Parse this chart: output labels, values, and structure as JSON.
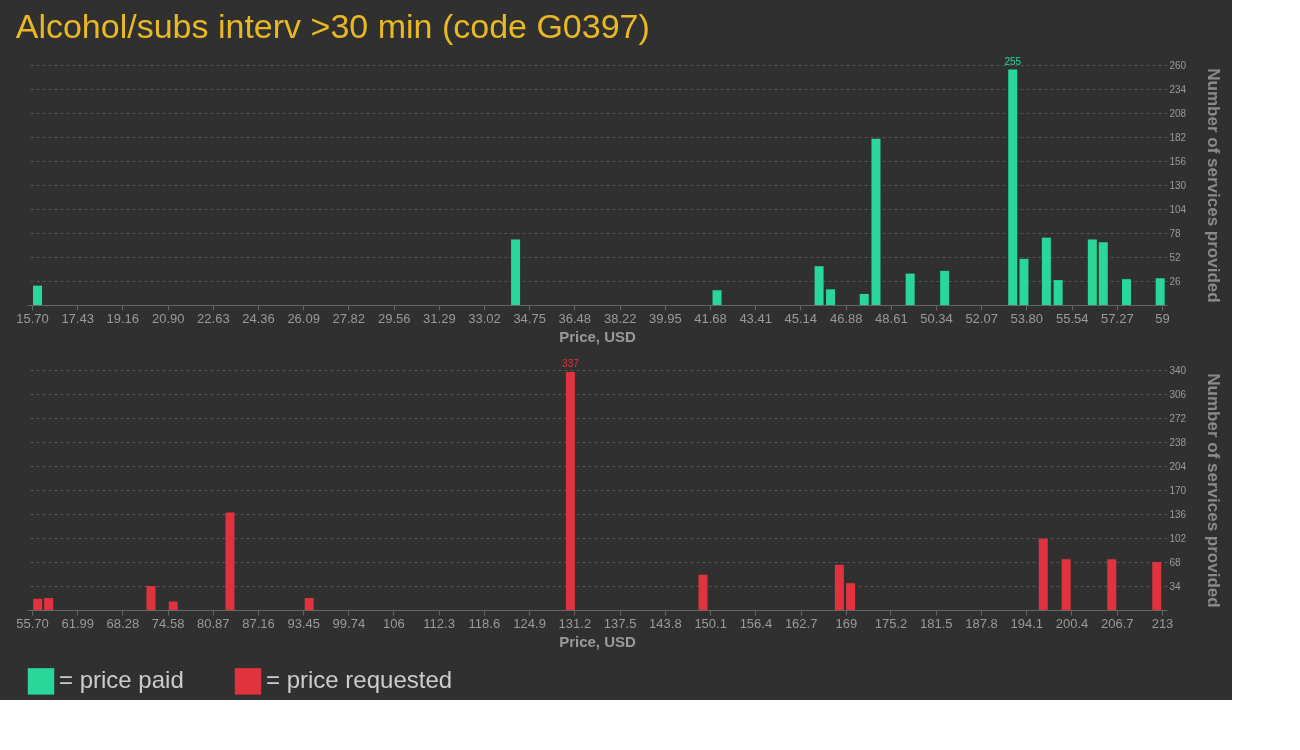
{
  "chart_data": [
    {
      "type": "bar",
      "title": "Alcohol/subs interv >30 min (code G0397)",
      "xlabel": "Price, USD",
      "ylabel": "Number of services provided",
      "x": [
        15.91,
        34.23,
        41.95,
        45.86,
        46.3,
        47.59,
        48.04,
        49.35,
        50.67,
        53.28,
        53.71,
        54.57,
        55.02,
        56.33,
        56.75,
        57.64,
        58.93
      ],
      "series": [
        {
          "name": "= price paid",
          "color": "#2ad79b",
          "values": [
            21,
            71,
            16,
            42,
            17,
            12,
            180,
            34,
            37,
            255,
            50,
            73,
            27,
            71,
            68,
            28,
            29
          ],
          "value_labels": [
            null,
            null,
            null,
            null,
            null,
            null,
            null,
            null,
            null,
            "255",
            null,
            null,
            null,
            null,
            null,
            null,
            null
          ]
        }
      ],
      "xlim": [
        15.7,
        59
      ],
      "xticks": [
        {
          "value": 15.7,
          "label": "15.70"
        },
        17.43,
        19.16,
        {
          "value": 20.9,
          "label": "20.90"
        },
        22.63,
        24.36,
        26.09,
        27.82,
        29.56,
        31.29,
        33.02,
        34.75,
        36.48,
        38.22,
        39.95,
        41.68,
        43.41,
        45.14,
        46.88,
        48.61,
        50.34,
        52.07,
        {
          "value": 53.8,
          "label": "53.80"
        },
        55.54,
        57.27,
        59
      ],
      "ylim": [
        0,
        260
      ],
      "yticks": [
        26,
        52,
        78,
        104,
        130,
        156,
        182,
        208,
        234,
        260
      ],
      "grid": "y",
      "legend": "bottom left"
    },
    {
      "type": "bar",
      "xlabel": "Price, USD",
      "ylabel": "Number of services provided",
      "x": [
        56.49,
        58.02,
        72.26,
        75.36,
        83.26,
        94.29,
        130.65,
        149.11,
        168.09,
        169.65,
        196.47,
        199.66,
        206.01,
        212.27
      ],
      "series": [
        {
          "name": "= price requested",
          "color": "#e0323f",
          "values": [
            16,
            17,
            34,
            12,
            138,
            17,
            337,
            50,
            64,
            38,
            101,
            72,
            72,
            68
          ],
          "value_labels": [
            null,
            null,
            null,
            null,
            null,
            null,
            "337",
            null,
            null,
            null,
            null,
            null,
            null,
            null
          ]
        }
      ],
      "xlim": [
        55.7,
        213
      ],
      "xticks": [
        {
          "value": 55.7,
          "label": "55.70"
        },
        61.99,
        68.28,
        74.58,
        80.87,
        87.16,
        93.45,
        99.74,
        106,
        112.3,
        118.6,
        124.9,
        131.2,
        137.5,
        143.8,
        150.1,
        156.4,
        162.7,
        169,
        175.2,
        181.5,
        187.8,
        194.1,
        200.4,
        206.7,
        213
      ],
      "ylim": [
        0,
        340
      ],
      "yticks": [
        34,
        68,
        102,
        136,
        170,
        204,
        238,
        272,
        306,
        340
      ],
      "grid": "y",
      "legend": "bottom left"
    }
  ]
}
